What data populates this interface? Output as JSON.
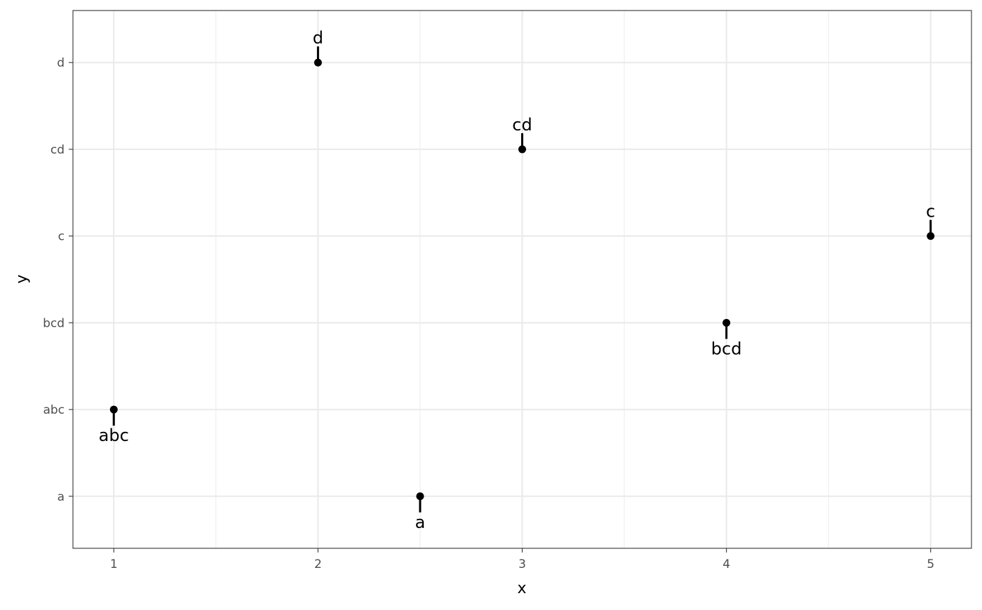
{
  "chart_data": {
    "type": "scatter",
    "title": "",
    "xlabel": "x",
    "ylabel": "y",
    "xlim": [
      0.8,
      5.2
    ],
    "x_ticks": [
      1,
      2,
      3,
      4,
      5
    ],
    "x_minor_ticks": [
      1.5,
      2.5,
      3.5,
      4.5
    ],
    "y_categories": [
      "a",
      "abc",
      "bcd",
      "c",
      "cd",
      "d"
    ],
    "grid": true,
    "theme": "bw",
    "point_color": "#000000",
    "points": [
      {
        "x": 1,
        "y": "abc",
        "label": "abc",
        "label_position": "below"
      },
      {
        "x": 2,
        "y": "d",
        "label": "d",
        "label_position": "above"
      },
      {
        "x": 2.5,
        "y": "a",
        "label": "a",
        "label_position": "below"
      },
      {
        "x": 3,
        "y": "cd",
        "label": "cd",
        "label_position": "above"
      },
      {
        "x": 4,
        "y": "bcd",
        "label": "bcd",
        "label_position": "below"
      },
      {
        "x": 5,
        "y": "c",
        "label": "c",
        "label_position": "above"
      }
    ]
  }
}
